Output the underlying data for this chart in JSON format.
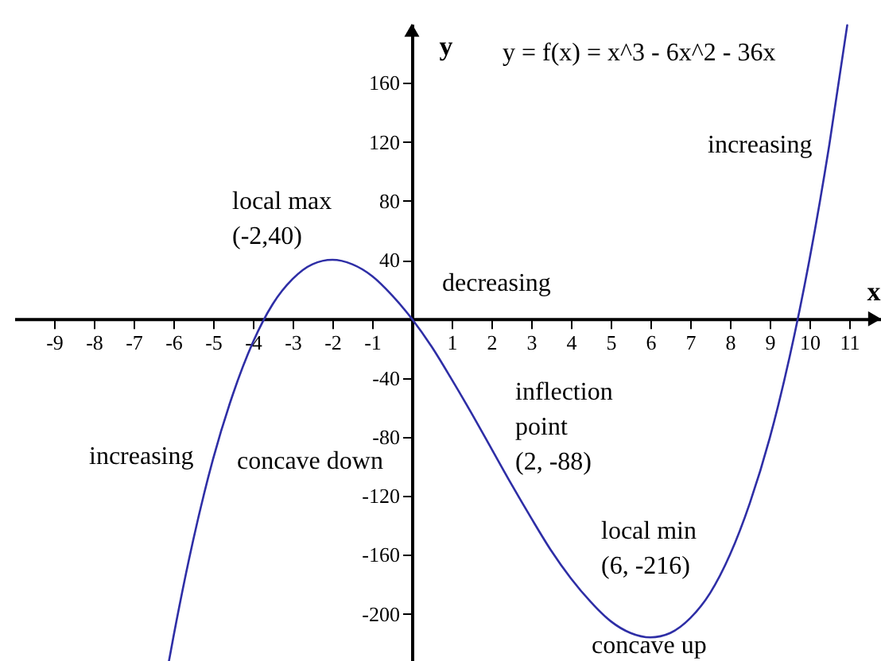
{
  "chart_data": {
    "type": "line",
    "title": "y = f(x) = x^3 - 6x^2 - 36x",
    "xlabel": "x",
    "ylabel": "y",
    "x": [
      -6.11,
      -6,
      -5.5,
      -5,
      -4.5,
      -4,
      -3.5,
      -3,
      -2.5,
      -2,
      -1.5,
      -1,
      -0.5,
      0,
      0.5,
      1,
      1.5,
      2,
      2.5,
      3,
      3.5,
      4,
      4.5,
      5,
      5.5,
      6,
      6.5,
      7,
      7.5,
      8,
      8.5,
      9,
      9.5,
      10,
      10.5,
      10.95
    ],
    "series": [
      {
        "color": "#2e2ea6",
        "values": [
          -232,
          -216,
          -150,
          -95,
          -51,
          -16,
          10,
          27,
          37,
          40,
          37,
          29,
          16,
          0,
          -19,
          -41,
          -64,
          -88,
          -112,
          -135,
          -157,
          -176,
          -192,
          -205,
          -213,
          -216,
          -213,
          -203,
          -186,
          -160,
          -125,
          -81,
          -26,
          40,
          118,
          199
        ]
      }
    ],
    "xlim": [
      -10,
      11.8
    ],
    "ylim": [
      -232,
      200
    ],
    "xticks": [
      -9,
      -8,
      -7,
      -6,
      -5,
      -4,
      -3,
      -2,
      -1,
      1,
      2,
      3,
      4,
      5,
      6,
      7,
      8,
      9,
      10,
      11
    ],
    "yticks": [
      -200,
      -160,
      -120,
      -80,
      -40,
      40,
      80,
      120,
      160
    ],
    "line_style": "solid",
    "annotations": [
      {
        "text": "local max\n(-2,40)",
        "x": -2,
        "y": 40
      },
      "decreasing",
      "increasing",
      "increasing",
      "concave down",
      {
        "text": "inflection\npoint\n(2, -88)",
        "x": 2,
        "y": -88
      },
      {
        "text": "local min\n(6, -216)",
        "x": 6,
        "y": -216
      },
      "concave up"
    ]
  }
}
